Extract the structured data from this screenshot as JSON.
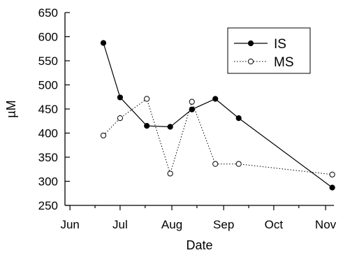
{
  "chart_data": {
    "type": "line",
    "xlabel": "Date",
    "ylabel": "µM",
    "x_ticks": [
      {
        "date": "2000-06-01",
        "label": "Jun"
      },
      {
        "date": "2000-07-01",
        "label": "Jul"
      },
      {
        "date": "2000-08-01",
        "label": "Aug"
      },
      {
        "date": "2000-09-01",
        "label": "Sep"
      },
      {
        "date": "2000-10-01",
        "label": "Oct"
      },
      {
        "date": "2000-11-01",
        "label": "Nov"
      }
    ],
    "xlim": [
      "2000-05-29",
      "2000-11-06"
    ],
    "ylim": [
      250,
      650
    ],
    "y_ticks": [
      250,
      300,
      350,
      400,
      450,
      500,
      550,
      600,
      650
    ],
    "grid": false,
    "legend_position": "top-right",
    "series": [
      {
        "name": "IS",
        "marker": "filled-circle",
        "line_style": "solid",
        "points": [
          {
            "x": "2000-06-21",
            "y": 587
          },
          {
            "x": "2000-07-01",
            "y": 474
          },
          {
            "x": "2000-07-17",
            "y": 415
          },
          {
            "x": "2000-07-31",
            "y": 413
          },
          {
            "x": "2000-08-13",
            "y": 449
          },
          {
            "x": "2000-08-27",
            "y": 471
          },
          {
            "x": "2000-09-10",
            "y": 431
          },
          {
            "x": "2000-11-05",
            "y": 287
          }
        ]
      },
      {
        "name": "MS",
        "marker": "open-circle",
        "line_style": "dotted",
        "points": [
          {
            "x": "2000-06-21",
            "y": 395
          },
          {
            "x": "2000-07-01",
            "y": 431
          },
          {
            "x": "2000-07-17",
            "y": 471
          },
          {
            "x": "2000-07-31",
            "y": 316
          },
          {
            "x": "2000-08-13",
            "y": 465
          },
          {
            "x": "2000-08-27",
            "y": 336
          },
          {
            "x": "2000-09-10",
            "y": 336
          },
          {
            "x": "2000-11-05",
            "y": 314
          }
        ]
      }
    ]
  }
}
